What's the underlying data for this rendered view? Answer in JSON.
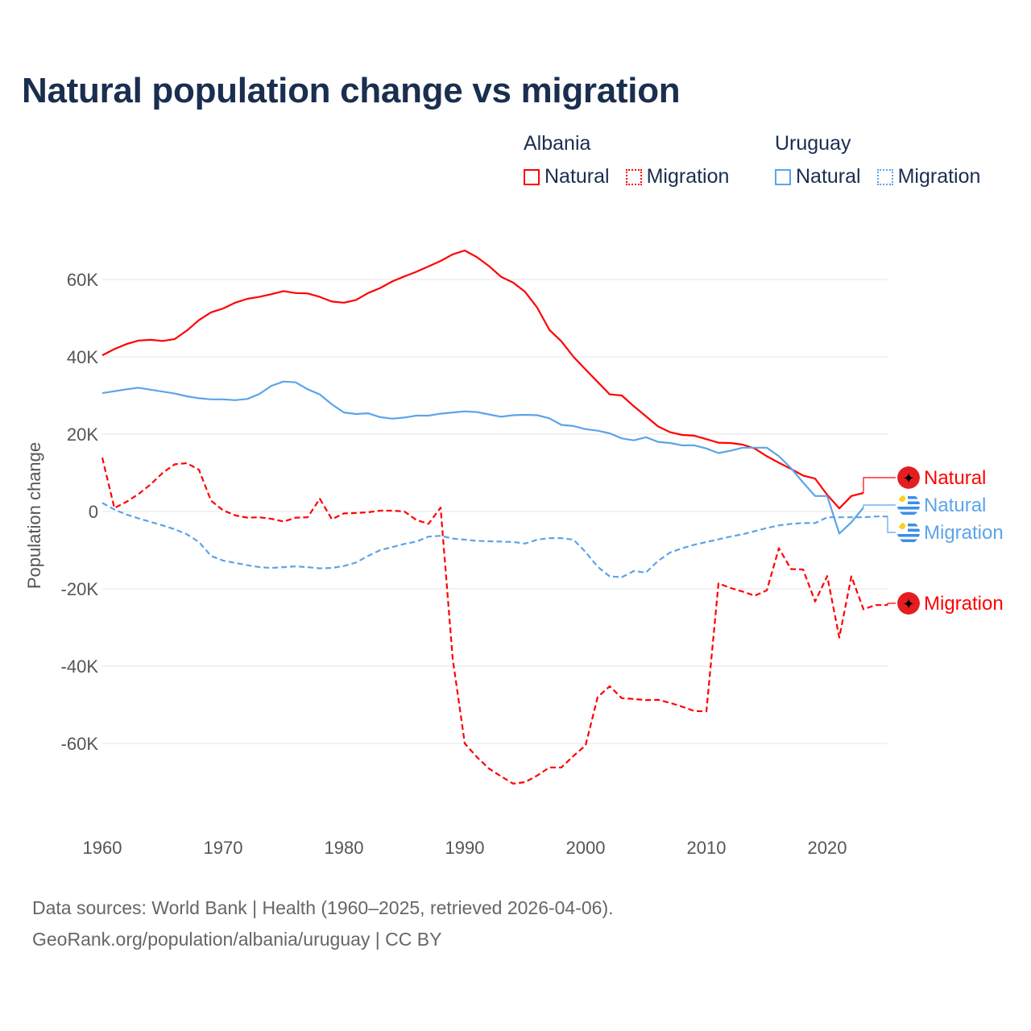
{
  "title": "Natural population change vs migration",
  "legend": [
    {
      "country": "Albania",
      "color": "#ff0000",
      "items": [
        "Natural",
        "Migration"
      ]
    },
    {
      "country": "Uruguay",
      "color": "#5ba4ea",
      "items": [
        "Natural",
        "Migration"
      ]
    }
  ],
  "footer": {
    "line1": "Data sources: World Bank | Health (1960–2025, retrieved 2026-04-06).",
    "line2": "GeoRank.org/population/albania/uruguay | CC BY"
  },
  "chart_data": {
    "type": "line",
    "title": "Natural population change vs migration",
    "xlabel": "",
    "ylabel": "Population change",
    "xlim": [
      1960,
      2025
    ],
    "ylim": [
      -75000,
      75000
    ],
    "yticks": [
      -60000,
      -40000,
      -20000,
      0,
      20000,
      40000,
      60000
    ],
    "ytick_labels": [
      "-60K",
      "-40K",
      "-20K",
      "0",
      "20K",
      "40K",
      "60K"
    ],
    "xticks": [
      1960,
      1970,
      1980,
      1990,
      2000,
      2010,
      2020
    ],
    "xtick_labels": [
      "1960",
      "1970",
      "1980",
      "1990",
      "2000",
      "2010",
      "2020"
    ],
    "grid": true,
    "series": [
      {
        "name": "Albania Natural",
        "label": "Natural",
        "country": "Albania",
        "color": "#ff0000",
        "dash": false,
        "start": 1960,
        "values": [
          40400,
          42000,
          43300,
          44200,
          44400,
          44100,
          44600,
          46800,
          49500,
          51500,
          52500,
          54000,
          55000,
          55500,
          56200,
          57000,
          56500,
          56400,
          55500,
          54300,
          54000,
          54700,
          56500,
          57800,
          59500,
          60800,
          62000,
          63400,
          64800,
          66500,
          67500,
          65800,
          63500,
          60700,
          59200,
          56800,
          52700,
          47000,
          44000,
          40000,
          36700,
          33500,
          30300,
          30000,
          27200,
          24600,
          22000,
          20500,
          19800,
          19600,
          18700,
          17800,
          17700,
          17300,
          16300,
          14300,
          12600,
          11000,
          9300,
          8500,
          4300,
          800,
          4000,
          4800
        ]
      },
      {
        "name": "Uruguay Natural",
        "label": "Natural",
        "country": "Uruguay",
        "color": "#5ba4ea",
        "dash": false,
        "start": 1960,
        "values": [
          30600,
          31100,
          31600,
          32000,
          31500,
          31000,
          30500,
          29800,
          29300,
          29000,
          29000,
          28800,
          29100,
          30400,
          32500,
          33600,
          33400,
          31600,
          30300,
          27700,
          25600,
          25200,
          25400,
          24400,
          24000,
          24300,
          24800,
          24800,
          25300,
          25600,
          25900,
          25700,
          25100,
          24500,
          24900,
          25000,
          24900,
          24100,
          22400,
          22100,
          21300,
          20900,
          20200,
          18900,
          18400,
          19200,
          18000,
          17700,
          17100,
          17100,
          16300,
          15100,
          15700,
          16500,
          16500,
          16500,
          14300,
          11200,
          7500,
          4000,
          4000,
          -5700,
          -2800,
          1000
        ]
      },
      {
        "name": "Uruguay Migration",
        "label": "Migration",
        "country": "Uruguay",
        "color": "#5ba4ea",
        "dash": true,
        "start": 1960,
        "values": [
          2200,
          500,
          -800,
          -1800,
          -2700,
          -3600,
          -4600,
          -5900,
          -7900,
          -11500,
          -12700,
          -13300,
          -13900,
          -14400,
          -14600,
          -14400,
          -14200,
          -14400,
          -14700,
          -14600,
          -14100,
          -13200,
          -11500,
          -10000,
          -9200,
          -8400,
          -7800,
          -6500,
          -6300,
          -7000,
          -7300,
          -7600,
          -7700,
          -7800,
          -7900,
          -8300,
          -7300,
          -6900,
          -6900,
          -7300,
          -10500,
          -14300,
          -16800,
          -17000,
          -15400,
          -15800,
          -12800,
          -10600,
          -9500,
          -8600,
          -7900,
          -7200,
          -6500,
          -5900,
          -5100,
          -4300,
          -3600,
          -3200,
          -3000,
          -3000,
          -1500,
          -1500,
          -1500,
          -1500,
          -1300,
          -1300
        ]
      },
      {
        "name": "Albania Migration",
        "label": "Migration",
        "country": "Albania",
        "color": "#ff0000",
        "dash": true,
        "start": 1960,
        "values": [
          13900,
          900,
          2500,
          4500,
          7000,
          10000,
          12200,
          12500,
          10800,
          2800,
          300,
          -1000,
          -1600,
          -1500,
          -1900,
          -2600,
          -1600,
          -1500,
          3300,
          -2000,
          -500,
          -400,
          -200,
          200,
          200,
          0,
          -2200,
          -3200,
          1000,
          -38000,
          -60000,
          -63500,
          -66500,
          -68500,
          -70400,
          -70000,
          -68300,
          -66200,
          -66200,
          -63200,
          -60500,
          -48000,
          -45200,
          -48300,
          -48500,
          -48800,
          -48700,
          -49500,
          -50500,
          -51600,
          -51700,
          -18600,
          -19800,
          -20700,
          -21800,
          -20400,
          -9500,
          -14900,
          -15000,
          -23300,
          -16700,
          -32600,
          -16800,
          -25300,
          -24200,
          -24200
        ]
      }
    ]
  }
}
